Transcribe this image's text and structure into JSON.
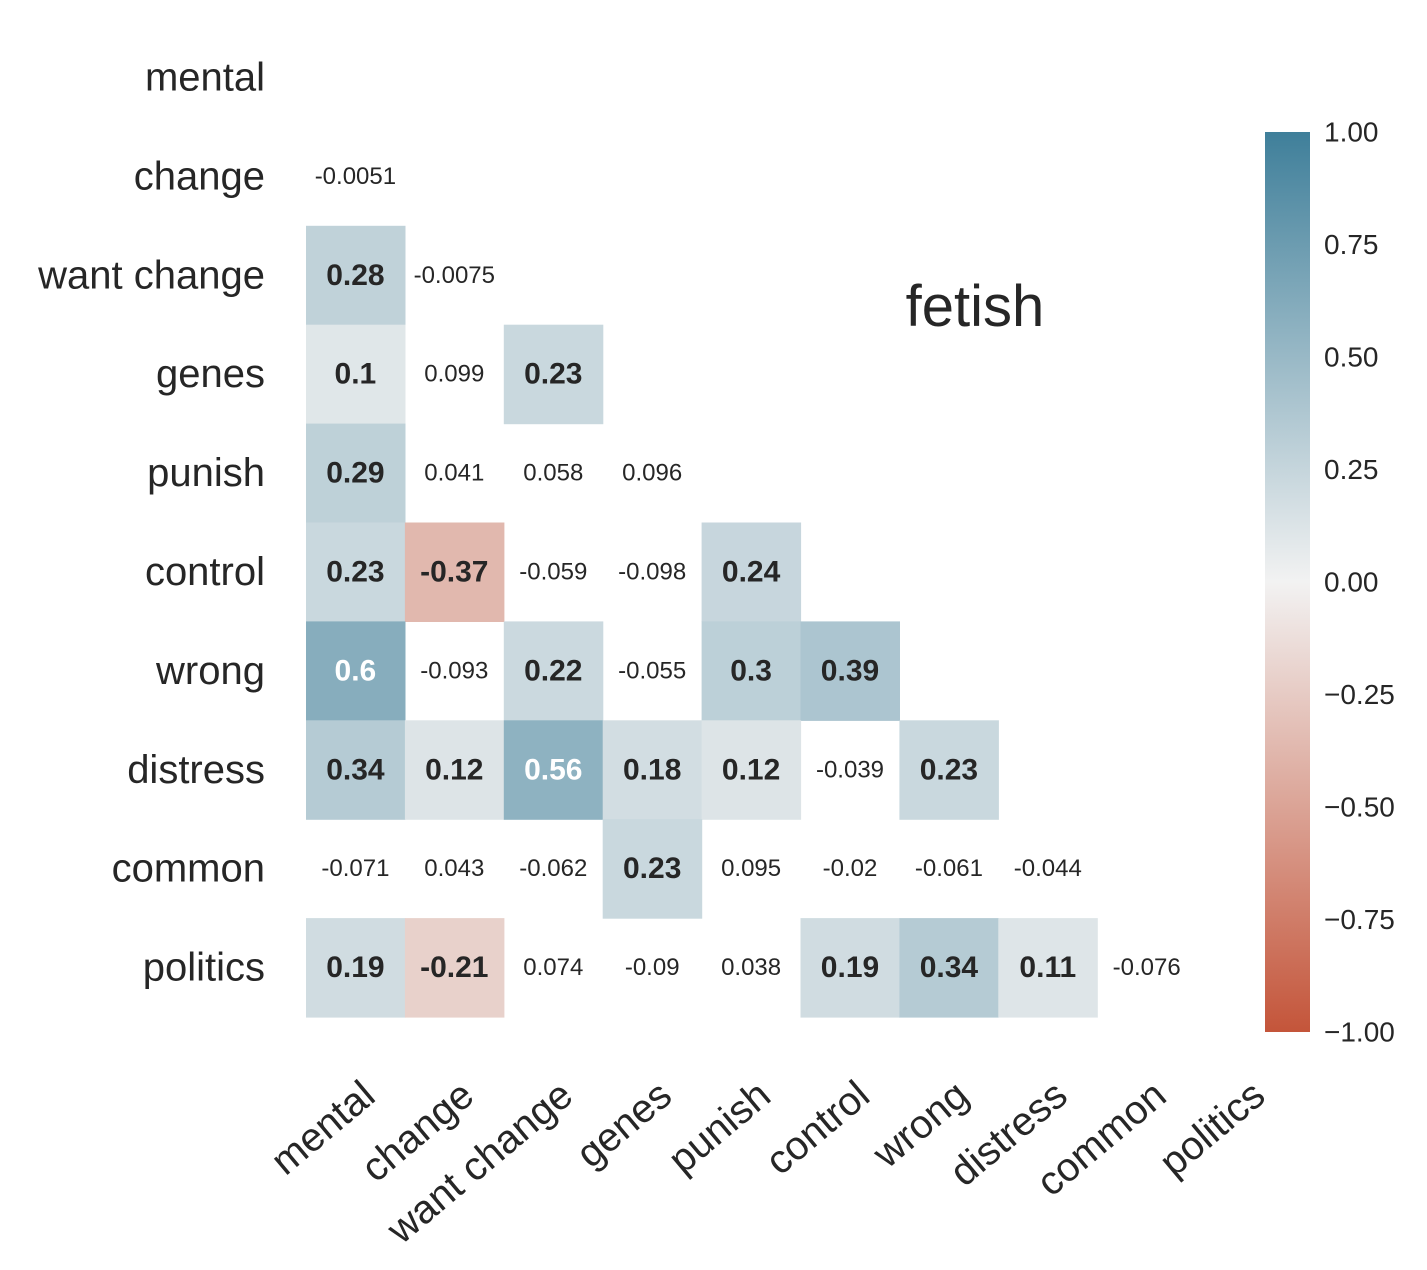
{
  "chart_data": {
    "type": "heatmap",
    "title": "fetish",
    "variables": [
      "mental",
      "change",
      "want change",
      "genes",
      "punish",
      "control",
      "wrong",
      "distress",
      "common",
      "politics"
    ],
    "lower_triangle": [
      [],
      [
        "-0.0051"
      ],
      [
        "0.28",
        "-0.0075"
      ],
      [
        "0.1",
        "0.099",
        "0.23"
      ],
      [
        "0.29",
        "0.041",
        "0.058",
        "0.096"
      ],
      [
        "0.23",
        "-0.37",
        "-0.059",
        "-0.098",
        "0.24"
      ],
      [
        "0.6",
        "-0.093",
        "0.22",
        "-0.055",
        "0.3",
        "0.39"
      ],
      [
        "0.34",
        "0.12",
        "0.56",
        "0.18",
        "0.12",
        "-0.039",
        "0.23"
      ],
      [
        "-0.071",
        "0.043",
        "-0.062",
        "0.23",
        "0.095",
        "-0.02",
        "-0.061",
        "-0.044"
      ],
      [
        "0.19",
        "-0.21",
        "0.074",
        "-0.09",
        "0.038",
        "0.19",
        "0.34",
        "0.11",
        "-0.076"
      ]
    ],
    "highlight_threshold": 0.1,
    "color_range": [
      -1,
      1
    ],
    "colorbar_ticks": [
      "1.00",
      "0.75",
      "0.50",
      "0.25",
      "0.00",
      "−0.25",
      "−0.50",
      "−0.75",
      "−1.00"
    ],
    "colors": {
      "positive": "#3f7f9a",
      "neutral": "#f2f2f2",
      "negative": "#c4553a",
      "text_dark": "#262626",
      "text_light": "#ffffff"
    },
    "grid": false,
    "legend": "colorbar-right"
  }
}
